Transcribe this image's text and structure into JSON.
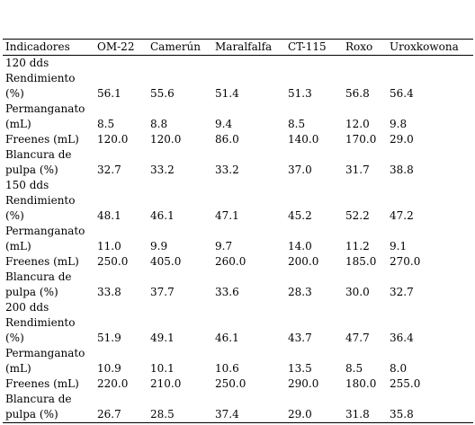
{
  "table": {
    "columns": [
      "Indicadores",
      "OM-22",
      "Camerún",
      "Maralfalfa",
      "CT-115",
      "Roxo",
      "Uroxkowona"
    ],
    "sections": [
      {
        "label": "120 dds",
        "rows": [
          {
            "label": "Rendimiento\n(%)",
            "values": [
              "56.1",
              "55.6",
              "51.4",
              "51.3",
              "56.8",
              "56.4"
            ]
          },
          {
            "label": "Permanganato\n (mL)",
            "values": [
              "8.5",
              "8.8",
              "9.4",
              "8.5",
              "12.0",
              "9.8"
            ]
          },
          {
            "label": "Freenes (mL)",
            "values": [
              "120.0",
              "120.0",
              "86.0",
              "140.0",
              "170.0",
              "29.0"
            ]
          },
          {
            "label": "Blancura de\npulpa (%)",
            "values": [
              "32.7",
              "33.2",
              "33.2",
              "37.0",
              "31.7",
              "38.8"
            ]
          }
        ]
      },
      {
        "label": "150 dds",
        "rows": [
          {
            "label": "Rendimiento\n(%)",
            "values": [
              "48.1",
              "46.1",
              "47.1",
              "45.2",
              "52.2",
              "47.2"
            ]
          },
          {
            "label": "Permanganato\n (mL)",
            "values": [
              "11.0",
              "9.9",
              "9.7",
              "14.0",
              "11.2",
              "9.1"
            ]
          },
          {
            "label": "Freenes (mL)",
            "values": [
              "250.0",
              "405.0",
              "260.0",
              "200.0",
              "185.0",
              "270.0"
            ]
          },
          {
            "label": "Blancura de\npulpa (%)",
            "values": [
              "33.8",
              "37.7",
              "33.6",
              "28.3",
              "30.0",
              "32.7"
            ]
          }
        ]
      },
      {
        "label": "200 dds",
        "rows": [
          {
            "label": "Rendimiento\n(%)",
            "values": [
              "51.9",
              "49.1",
              "46.1",
              "43.7",
              "47.7",
              "36.4"
            ]
          },
          {
            "label": "Permanganato\n (mL)",
            "values": [
              "10.9",
              "10.1",
              "10.6",
              "13.5",
              "8.5",
              "8.0"
            ]
          },
          {
            "label": "Freenes (mL)",
            "values": [
              "220.0",
              "210.0",
              "250.0",
              "290.0",
              "180.0",
              "255.0"
            ]
          },
          {
            "label": "Blancura de\npulpa (%)",
            "values": [
              "26.7",
              "28.5",
              "37.4",
              "29.0",
              "31.8",
              "35.8"
            ]
          }
        ]
      }
    ]
  }
}
